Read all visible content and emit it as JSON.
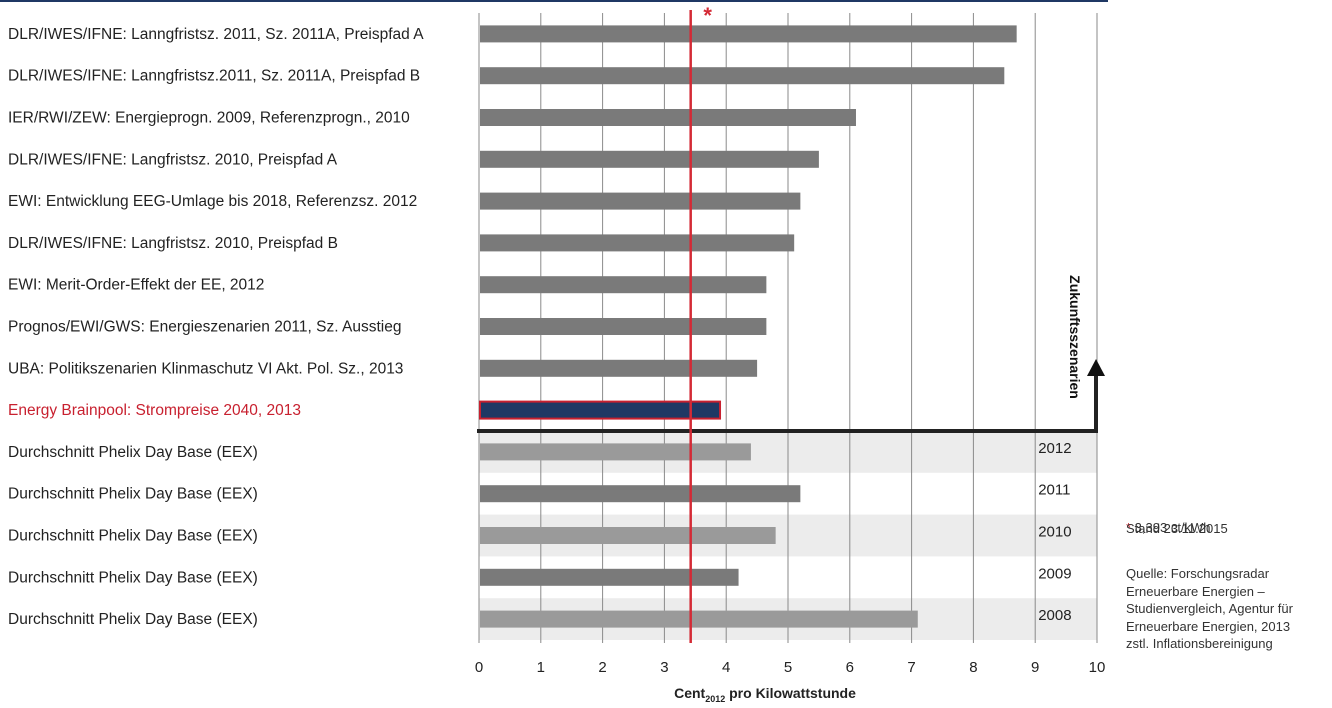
{
  "colors": {
    "bar": "#7a7a7a",
    "bar_light": "#9a9a9a",
    "highlight_fill": "#1f3864",
    "highlight_stroke": "#c8202f",
    "highlight_text": "#c8202f",
    "reference_line": "#d42a35",
    "band": "#ececec",
    "grid": "#8a8a8a",
    "top_rule": "#1f3864"
  },
  "chart_data": {
    "type": "bar",
    "orientation": "horizontal",
    "categories": [
      "DLR/IWES/IFNE: Lanngfristsz. 2011, Sz. 2011A, Preispfad A",
      "DLR/IWES/IFNE: Lanngfristsz.2011, Sz. 2011A, Preispfad B",
      "IER/RWI/ZEW: Energieprogn. 2009, Referenzprogn., 2010",
      "DLR/IWES/IFNE: Langfristsz. 2010, Preispfad A",
      "EWI: Entwicklung EEG-Umlage bis 2018, Referenzsz. 2012",
      "DLR/IWES/IFNE: Langfristsz. 2010, Preispfad B",
      "EWI: Merit-Order-Effekt der EE, 2012",
      "Prognos/EWI/GWS: Energieszenarien 2011, Sz. Ausstieg",
      "UBA: Politikszenarien Klinmaschutz VI Akt. Pol. Sz., 2013",
      "Energy Brainpool: Strompreise 2040, 2013",
      "Durchschnitt Phelix Day Base (EEX)",
      "Durchschnitt Phelix Day Base (EEX)",
      "Durchschnitt Phelix Day Base (EEX)",
      "Durchschnitt Phelix Day Base (EEX)",
      "Durchschnitt Phelix Day Base (EEX)"
    ],
    "values": [
      8.7,
      8.5,
      6.1,
      5.5,
      5.2,
      5.1,
      4.65,
      4.65,
      4.5,
      3.9,
      4.4,
      5.2,
      4.8,
      4.2,
      7.1
    ],
    "highlight_index": 9,
    "year_labels": [
      "",
      "",
      "",
      "",
      "",
      "",
      "",
      "",
      "",
      "",
      "2012",
      "2011",
      "2010",
      "2009",
      "2008"
    ],
    "xlim": [
      0,
      10
    ],
    "xticks": [
      "0",
      "1",
      "2",
      "3",
      "4",
      "5",
      "6",
      "7",
      "8",
      "9",
      "10"
    ],
    "xlabel_main": "Cent",
    "xlabel_sub": "2012",
    "xlabel_rest": " pro Kilowattstunde",
    "reference_value": 3.393,
    "reference_marker": "*",
    "bracket_label": "Zukunftsszenarien",
    "grid": true
  },
  "notes": {
    "star": "*",
    "price": " 3,393 ct/kWh",
    "date": "Stand 23.11.2015",
    "source": "Quelle: Forschungsradar\nErneuerbare Energien –\nStudienvergleich, Agentur für\nErneuerbare Energien, 2013\nzstl. Inflationsbereinigung"
  }
}
